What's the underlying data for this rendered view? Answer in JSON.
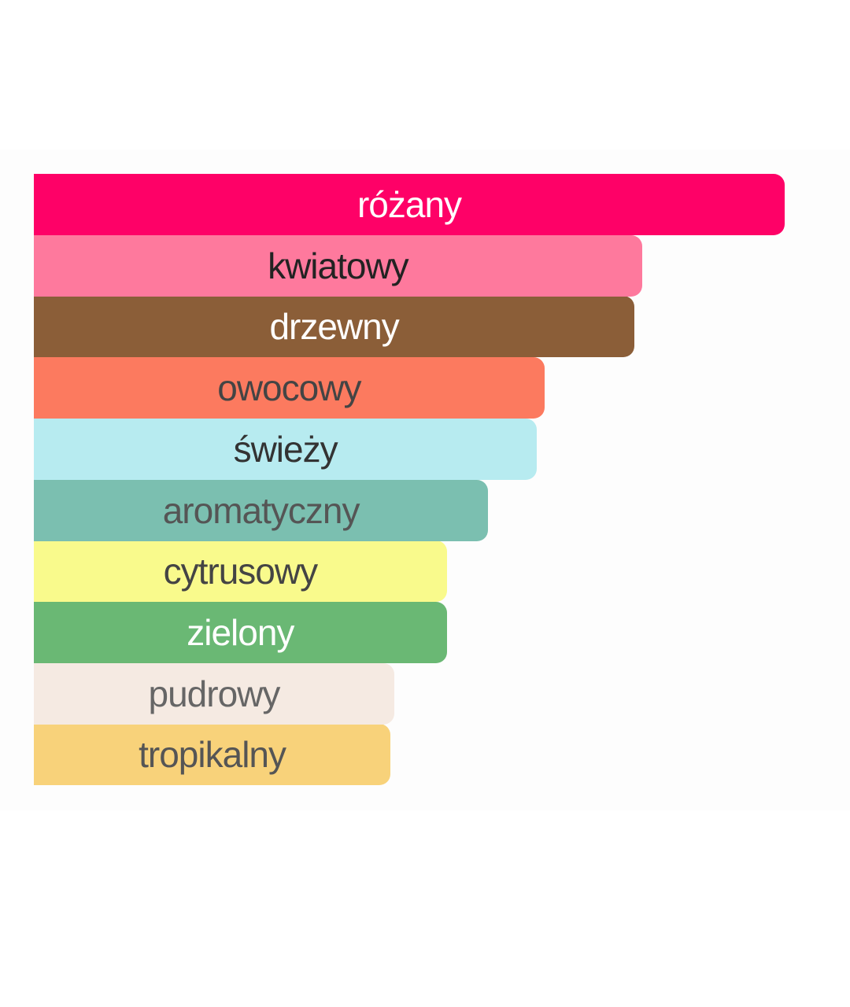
{
  "chart_data": {
    "type": "bar",
    "orientation": "horizontal",
    "categories": [
      "różany",
      "kwiatowy",
      "drzewny",
      "owocowy",
      "świeży",
      "aromatyczny",
      "cytrusowy",
      "zielony",
      "pudrowy",
      "tropikalny"
    ],
    "values": [
      100,
      81,
      80,
      68,
      67,
      60.5,
      55,
      55,
      48,
      47.5
    ],
    "xlim": [
      0,
      100
    ],
    "grid": false,
    "colors": [
      "#FE0167",
      "#FE799D",
      "#8B5E38",
      "#FC7A5F",
      "#B7EBF0",
      "#7BBFB0",
      "#F9FA8C",
      "#6AB874",
      "#F5EAE2",
      "#F8D27A"
    ],
    "label_colors": [
      "#FFFFFF",
      "#222222",
      "#FFFFFF",
      "#444444",
      "#333333",
      "#555555",
      "#444444",
      "#FFFFFF",
      "#666666",
      "#555555"
    ]
  }
}
